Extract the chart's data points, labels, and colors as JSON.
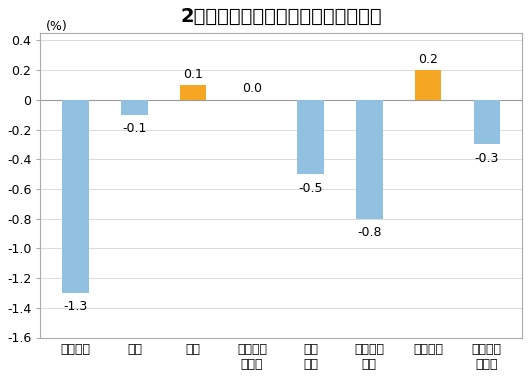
{
  "title": "2月份居民消费价格分类别环比涨跌幅",
  "ylabel": "(%)",
  "categories": [
    "食品烟酒",
    "衣着",
    "居住",
    "生活用品\n及服务",
    "交通\n通信",
    "教育文化\n娱乐",
    "医疗保健",
    "其他用品\n及服务"
  ],
  "values": [
    -1.3,
    -0.1,
    0.1,
    0.0,
    -0.5,
    -0.8,
    0.2,
    -0.3
  ],
  "bar_colors": [
    "#92c0e0",
    "#92c0e0",
    "#f5a623",
    "#92c0e0",
    "#92c0e0",
    "#92c0e0",
    "#f5a623",
    "#92c0e0"
  ],
  "ylim": [
    -1.6,
    0.45
  ],
  "yticks": [
    -1.6,
    -1.4,
    -1.2,
    -1.0,
    -0.8,
    -0.6,
    -0.4,
    -0.2,
    0.0,
    0.2,
    0.4
  ],
  "title_fontsize": 14,
  "label_fontsize": 9,
  "tick_fontsize": 9,
  "ylabel_fontsize": 9,
  "background_color": "#ffffff",
  "grid_color": "#cccccc",
  "bar_width": 0.45,
  "spine_color": "#aaaaaa",
  "zero_line_color": "#999999"
}
